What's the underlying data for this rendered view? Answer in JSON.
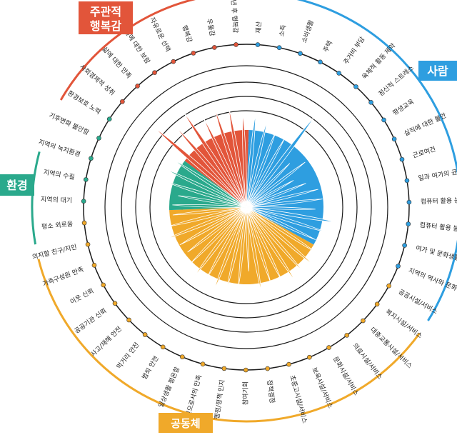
{
  "chart_data": {
    "type": "radial-bar",
    "grid": true,
    "rlim": [
      0,
      5
    ],
    "series": [
      {
        "name": "주관적 행복감",
        "color": "#e2553a",
        "categories": [
          "5년 후 행복감",
          "우울감",
          "행복감",
          "자유로운 선택",
          "일에 대한 보람",
          "삶에 대한 만족",
          "사회경제적 성취"
        ],
        "values": [
          4.9,
          4.3,
          4.6,
          4.0,
          4.2,
          4.1,
          3.8
        ]
      },
      {
        "name": "사람",
        "color": "#2e9ee0",
        "categories": [
          "재산",
          "소득",
          "소비생활",
          "주택",
          "주거비 부담",
          "육체적 활동 제약",
          "정신적 스트레스",
          "평생교육",
          "실직에 대한 불안",
          "근로여건",
          "일과 여가의 균형",
          "컴퓨터 활용 능숙",
          "컴퓨터 활용 불안감",
          "여가 및 문화생활",
          "지역의 역사와 문화"
        ],
        "values": [
          3.8,
          3.6,
          3.3,
          3.2,
          4.6,
          2.5,
          3.0,
          2.2,
          2.6,
          3.0,
          3.1,
          2.8,
          3.7,
          3.4,
          3.1
        ]
      },
      {
        "name": "환경",
        "color": "#2aa98c",
        "categories": [
          "환경보호 노력",
          "기후변화 불안함",
          "지역의 녹지환경",
          "지역의 수질",
          "지역의 대기"
        ],
        "values": [
          3.0,
          2.8,
          3.4,
          3.6,
          3.5
        ]
      },
      {
        "name": "공동체",
        "color": "#f0a92a",
        "categories": [
          "공공시설/서비스",
          "복지시설/서비스",
          "대중교통시설/서비스",
          "의료시설/서비스",
          "문화시설/서비스",
          "보육시설/서비스",
          "초중고시설/서비스",
          "정책결정 참여기회",
          "행정/정책 인지",
          "주민으로서의 만족",
          "일상생활 평온함",
          "범죄 안전",
          "먹거리 안전",
          "사고/재해 안전",
          "공공기관 신뢰",
          "이웃 신뢰",
          "가족구성원 만족",
          "의지할 친구/지인",
          "평소 외로움"
        ],
        "values": [
          3.4,
          3.6,
          3.5,
          3.6,
          3.3,
          3.2,
          3.5,
          2.6,
          3.2,
          3.4,
          3.6,
          3.3,
          3.5,
          3.2,
          3.0,
          3.1,
          3.5,
          3.3,
          3.0
        ]
      }
    ]
  },
  "category_labels": [
    "재산",
    "소득",
    "소비생활",
    "주택",
    "주거비 부담",
    "육체적 활동 제약",
    "정신적 스트레스",
    "평생교육",
    "실직에 대한 불안",
    "근로여건",
    "일과 여가의 균형",
    "컴퓨터 활용 능숙",
    "컴퓨터 활용 불안감",
    "여가 및 문화생활",
    "지역의 역사와 문화",
    "공공시설/서비스",
    "복지시설/서비스",
    "대중교통시설/서비스",
    "의료시설/서비스",
    "문화시설/서비스",
    "보육시설/서비스",
    "초중고시설/서비스",
    "정책결정",
    "참여기회",
    "행정/정책 인지",
    "주민으로서의 만족",
    "일상생활 평온함",
    "범죄 안전",
    "먹거리 안전",
    "사고/재해 안전",
    "공공기관 신뢰",
    "이웃 신뢰",
    "가족구성원 만족",
    "의지할 친구/지인",
    "평소 외로움",
    "지역의 대기",
    "지역의 수질",
    "지역의 녹지환경",
    "기후변화 불안함",
    "환경보호 노력",
    "사회경제적 성취",
    "삶에 대한 만족",
    "일에 대한 보람",
    "자유로운 선택",
    "행복감",
    "우울감",
    "5년 후 행복감"
  ],
  "group_labels": {
    "happiness_line1": "주관적",
    "happiness_line2": "행복감",
    "people": "사람",
    "environment": "환경",
    "community": "공동체"
  }
}
